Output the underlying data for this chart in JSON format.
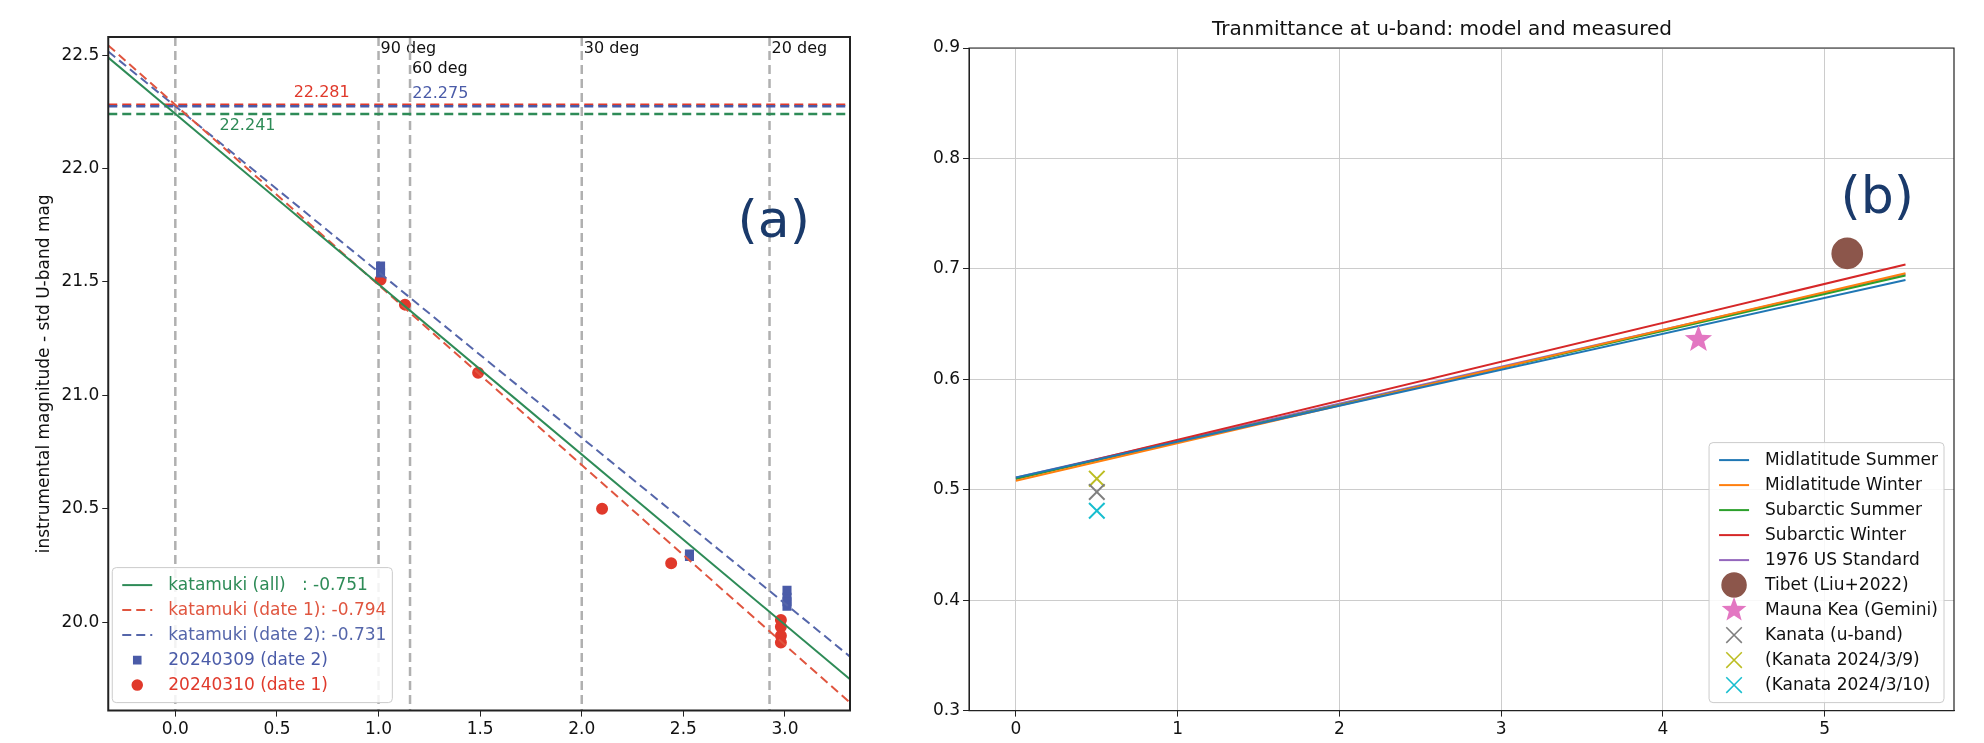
{
  "chart_data": [
    {
      "type": "scatter",
      "ylabel": "instrumental magnitude - std U-band mag",
      "xlim": [
        -0.33,
        3.32
      ],
      "ylim": [
        19.61,
        22.58
      ],
      "xticks": [
        {
          "value": 0,
          "label": "0.0"
        },
        {
          "value": 0.5,
          "label": "0.5"
        },
        {
          "value": 1,
          "label": "1.0"
        },
        {
          "value": 1.5,
          "label": "1.5"
        },
        {
          "value": 2,
          "label": "2.0"
        },
        {
          "value": 2.5,
          "label": "2.5"
        },
        {
          "value": 3,
          "label": "3.0"
        }
      ],
      "yticks": [
        {
          "value": 20,
          "label": "20.0"
        },
        {
          "value": 20.5,
          "label": "20.5"
        },
        {
          "value": 21,
          "label": "21.0"
        },
        {
          "value": 21.5,
          "label": "21.5"
        },
        {
          "value": 22,
          "label": "22.0"
        },
        {
          "value": 22.5,
          "label": "22.5"
        }
      ],
      "grid": false,
      "legend": "bottom left",
      "series": [
        {
          "name": "katamuki (all)   : -0.751",
          "type": "line",
          "color": "#2e8b57",
          "marker": "none",
          "line_style": "solid",
          "x": [
            -0.33,
            3.32
          ],
          "values": [
            22.489,
            19.748
          ]
        },
        {
          "name": "katamuki (date 1): -0.794",
          "type": "line",
          "color": "#e0553f",
          "marker": "none",
          "line_style": "dashed",
          "x": [
            -0.33,
            3.32
          ],
          "values": [
            22.543,
            19.645
          ]
        },
        {
          "name": "katamuki (date 2): -0.731",
          "type": "line",
          "color": "#5566aa",
          "marker": "none",
          "line_style": "dashed",
          "x": [
            -0.33,
            3.32
          ],
          "values": [
            22.516,
            19.848
          ]
        },
        {
          "name": "20240309 (date 2)",
          "color": "#4a5ba8",
          "marker": "square",
          "x": [
            1.01,
            1.01,
            2.53,
            2.53,
            3.01,
            3.01,
            3.01,
            3.01
          ],
          "values": [
            21.57,
            21.54,
            20.3,
            20.29,
            20.14,
            20.11,
            20.09,
            20.07
          ]
        },
        {
          "name": "20240310 (date 1)",
          "color": "#e0392b",
          "marker": "circle",
          "x": [
            1.01,
            1.13,
            1.49,
            2.1,
            2.44,
            2.98,
            2.98,
            2.98,
            2.98
          ],
          "values": [
            21.51,
            21.4,
            21.1,
            20.5,
            20.26,
            20.01,
            19.98,
            19.94,
            19.91
          ]
        }
      ],
      "ref_lines": [
        {
          "axis": "x",
          "value": 0,
          "label": null,
          "color": "#b0b0b0",
          "line_style": "dashed"
        },
        {
          "axis": "x",
          "value": 1,
          "label": "90 deg",
          "color": "#b0b0b0",
          "line_style": "dashed"
        },
        {
          "axis": "x",
          "value": 1.155,
          "label": "60 deg",
          "color": "#b0b0b0",
          "line_style": "dashed"
        },
        {
          "axis": "x",
          "value": 2,
          "label": "30 deg",
          "color": "#b0b0b0",
          "line_style": "dashed"
        },
        {
          "axis": "x",
          "value": 2.924,
          "label": "20 deg",
          "color": "#b0b0b0",
          "line_style": "dashed"
        },
        {
          "axis": "y",
          "value": 22.241,
          "label": "22.241",
          "color": "#2e8b57",
          "line_style": "dashed"
        },
        {
          "axis": "y",
          "value": 22.281,
          "label": "22.281",
          "color": "#e0392b",
          "line_style": "dashed"
        },
        {
          "axis": "y",
          "value": 22.275,
          "label": "22.275",
          "color": "#4a5ba8",
          "line_style": "dashed"
        }
      ],
      "annotations": [
        "(a)"
      ]
    },
    {
      "type": "line",
      "title": "Tranmittance at u-band: model and measured",
      "xlim": [
        -0.29,
        5.8
      ],
      "ylim": [
        0.3,
        0.9
      ],
      "xticks": [
        0,
        1,
        2,
        3,
        4,
        5
      ],
      "yticks": [
        0.3,
        0.4,
        0.5,
        0.6,
        0.7,
        0.8,
        0.9
      ],
      "grid": true,
      "legend": "bottom right",
      "marker": "none",
      "line_style": "solid",
      "series": [
        {
          "name": "Midlatitude Summer",
          "color": "#1f77b4",
          "x": [
            0,
            5.5
          ],
          "values": [
            0.511,
            0.69
          ]
        },
        {
          "name": "Midlatitude Winter",
          "color": "#ff7f0e",
          "x": [
            0,
            5.5
          ],
          "values": [
            0.508,
            0.696
          ]
        },
        {
          "name": "Subarctic Summer",
          "color": "#2ca02c",
          "x": [
            0,
            5.5
          ],
          "values": [
            0.51,
            0.694
          ]
        },
        {
          "name": "Subarctic Winter",
          "color": "#d62728",
          "x": [
            0,
            5.5
          ],
          "values": [
            0.51,
            0.704
          ]
        },
        {
          "name": "1976 US Standard",
          "color": "#9467bd",
          "x": [
            0,
            5.5
          ],
          "values": [
            0.511,
            0.695
          ]
        },
        {
          "name": "Tibet (Liu+2022)",
          "type": "scatter",
          "color": "#8c564b",
          "marker": "circle",
          "x": [
            5.14
          ],
          "values": [
            0.714
          ]
        },
        {
          "name": "Mauna Kea (Gemini)",
          "type": "scatter",
          "color": "#e377c2",
          "marker": "star",
          "x": [
            4.22
          ],
          "values": [
            0.636
          ]
        },
        {
          "name": "Kanata (u-band)",
          "type": "scatter",
          "color": "#7f7f7f",
          "marker": "cross",
          "x": [
            0.5
          ],
          "values": [
            0.498
          ]
        },
        {
          "name": "(Kanata 2024/3/9)",
          "type": "scatter",
          "color": "#bcbd22",
          "marker": "cross",
          "x": [
            0.5
          ],
          "values": [
            0.51
          ]
        },
        {
          "name": "(Kanata 2024/3/10)",
          "type": "scatter",
          "color": "#17becf",
          "marker": "cross",
          "x": [
            0.5
          ],
          "values": [
            0.481
          ]
        }
      ],
      "annotations": [
        "(b)"
      ]
    }
  ]
}
